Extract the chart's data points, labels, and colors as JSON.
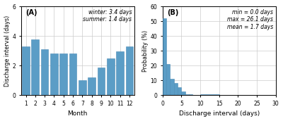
{
  "A_months": [
    1,
    2,
    3,
    4,
    5,
    6,
    7,
    8,
    9,
    10,
    11,
    12
  ],
  "A_values": [
    3.3,
    3.75,
    3.1,
    2.8,
    2.8,
    2.8,
    1.0,
    1.2,
    1.85,
    2.5,
    2.95,
    3.3
  ],
  "A_ylabel": "Discharge interval (days)",
  "A_xlabel": "Month",
  "A_ylim": [
    0,
    6
  ],
  "A_yticks": [
    0,
    2,
    4,
    6
  ],
  "A_label": "(A)",
  "A_annotation": "winter: 3.4 days\nsummer: 1.4 days",
  "B_bin_edges": [
    0,
    1,
    2,
    3,
    4,
    5,
    6,
    7,
    8,
    9,
    10,
    15,
    20,
    25,
    30
  ],
  "B_heights": [
    52,
    21,
    11,
    8,
    5.5,
    2.5,
    0.8,
    0.5,
    0.3,
    0.2,
    0.4,
    0.3,
    0.1,
    0.05
  ],
  "B_ylabel": "Probability (%)",
  "B_xlabel": "Discharge interval (days)",
  "B_ylim": [
    0,
    60
  ],
  "B_yticks": [
    0,
    10,
    20,
    30,
    40,
    50,
    60
  ],
  "B_xlim": [
    0,
    30
  ],
  "B_xticks": [
    0,
    5,
    10,
    15,
    20,
    25,
    30
  ],
  "B_label": "(B)",
  "B_annotation": "min = 0.0 days\nmax = 26.1 days\nmean = 1.7 days",
  "bar_color": "#5b9dc6",
  "bar_edgecolor": "#4a8ab5",
  "bg_color": "#ffffff",
  "grid_color": "#cccccc"
}
